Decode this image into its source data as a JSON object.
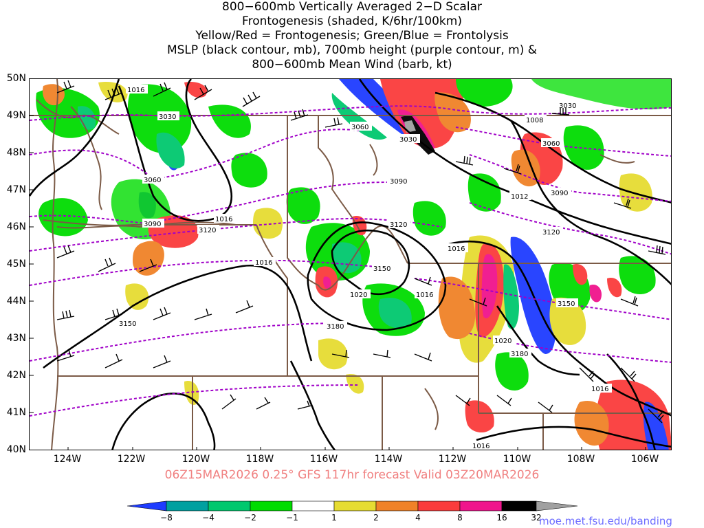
{
  "title_lines": [
    "800−600mb Vertically Averaged 2−D Scalar",
    "Frontogenesis (shaded, K/6hr/100km)",
    "Yellow/Red = Frontogenesis;  Green/Blue = Frontolysis",
    "MSLP (black contour, mb), 700mb height (purple contour, m) &",
    "800−600mb Mean Wind (barb, kt)"
  ],
  "lat_labels": [
    "50N",
    "49N",
    "48N",
    "47N",
    "46N",
    "45N",
    "44N",
    "43N",
    "42N",
    "41N",
    "40N"
  ],
  "lon_labels": [
    "124W",
    "122W",
    "120W",
    "118W",
    "116W",
    "114W",
    "112W",
    "110W",
    "108W",
    "106W"
  ],
  "valid_text": "06Z15MAR2026 0.25° GFS 117hr forecast Valid 03Z20MAR2026",
  "colorbar": {
    "labels": [
      "−8",
      "−4",
      "−2",
      "−1",
      "1",
      "2",
      "4",
      "8",
      "16",
      "32"
    ],
    "colors": [
      "#1e3cff",
      "#00a0a0",
      "#00c86e",
      "#00dc00",
      "#ffffff",
      "#e6dc32",
      "#f08228",
      "#fa3c3c",
      "#f0148c",
      "#000000",
      "#a0a0a0"
    ]
  },
  "colors": {
    "mslp": "#000000",
    "height": "#a000c8",
    "borders": "#7b5a46",
    "barbs": "#000000"
  },
  "mslp_labels": [
    "1016",
    "1016",
    "1016",
    "1016",
    "1016",
    "1016",
    "1020",
    "1020",
    "1012",
    "1008",
    "1016"
  ],
  "height_labels": [
    "3030",
    "3060",
    "3060",
    "3030",
    "3090",
    "3120",
    "3090",
    "3120",
    "3150",
    "3180",
    "3150",
    "3060",
    "3090",
    "3120",
    "3150",
    "3180",
    "3030"
  ],
  "credit": "moe.met.fsu.edu/banding"
}
